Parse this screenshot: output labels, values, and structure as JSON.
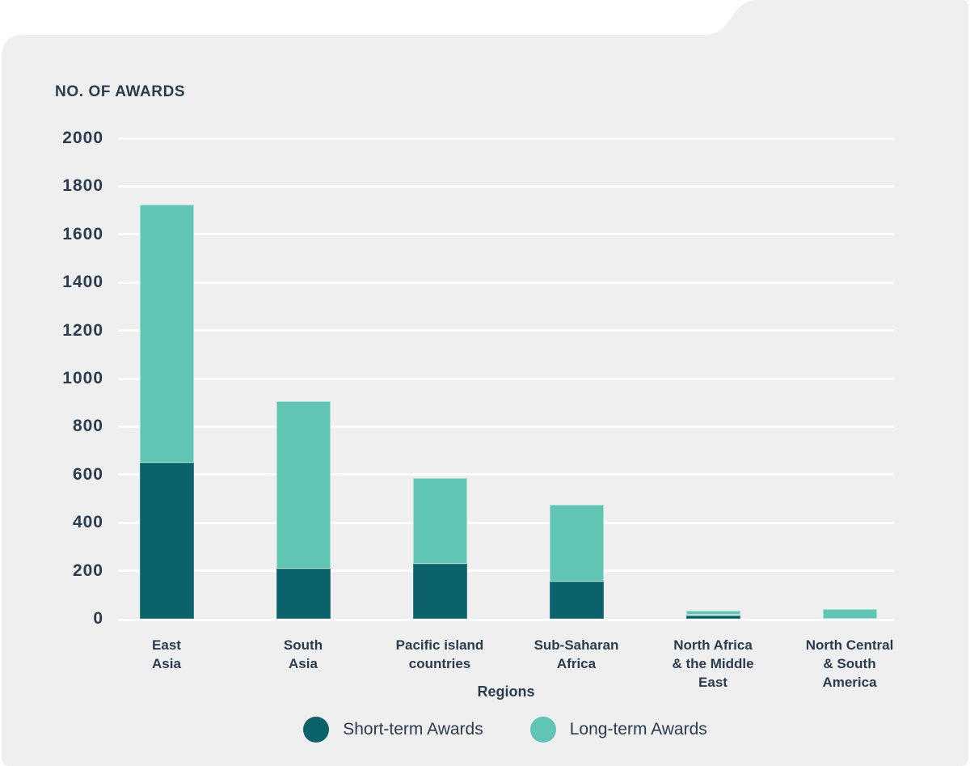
{
  "title": "NO. OF AWARDS",
  "colors": {
    "card_background": "#efefef",
    "gridline": "#ffffff",
    "text": "#2b3c4e",
    "short_term": "#0b626b",
    "long_term": "#60c5b2"
  },
  "chart_data": {
    "type": "bar",
    "stacked": true,
    "title": "NO. OF AWARDS",
    "xlabel": "Regions",
    "ylabel": "NO. OF AWARDS",
    "ylim": [
      0,
      2000
    ],
    "ytick_step": 200,
    "grid": true,
    "legend_position": "bottom",
    "categories": [
      "East Asia",
      "South Asia",
      "Pacific island countries",
      "Sub-Saharan Africa",
      "North Africa & the Middle East",
      "North Central & South America"
    ],
    "category_lines": [
      [
        "East",
        "Asia"
      ],
      [
        "South",
        "Asia"
      ],
      [
        "Pacific island",
        "countries"
      ],
      [
        "Sub-Saharan",
        "Africa"
      ],
      [
        "North Africa",
        "& the Middle",
        "East"
      ],
      [
        "North Central",
        "& South",
        "America"
      ]
    ],
    "series": [
      {
        "name": "Short-term Awards",
        "color": "#0b626b",
        "values": [
          650,
          210,
          230,
          155,
          15,
          0
        ]
      },
      {
        "name": "Long-term Awards",
        "color": "#60c5b2",
        "values": [
          1075,
          695,
          355,
          320,
          20,
          40
        ]
      }
    ],
    "totals": [
      1725,
      905,
      585,
      475,
      35,
      40
    ]
  }
}
